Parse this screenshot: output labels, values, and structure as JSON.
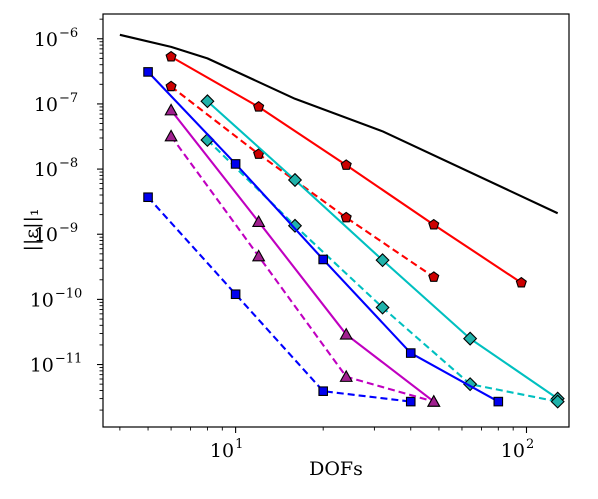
{
  "chart_data": {
    "type": "line",
    "title": "",
    "xlabel": "DOFs",
    "ylabel": "||ε||₁",
    "xscale": "log",
    "yscale": "log",
    "xlim": [
      3.5,
      140
    ],
    "ylim": [
      1.1e-12,
      2.4e-06
    ],
    "grid": false,
    "xticks": [
      {
        "value": 10,
        "base": "10",
        "exp": "1"
      },
      {
        "value": 100,
        "base": "10",
        "exp": "2"
      }
    ],
    "yticks": [
      {
        "value": 1e-11,
        "base": "10",
        "exp": "−11"
      },
      {
        "value": 1e-10,
        "base": "10",
        "exp": "−10"
      },
      {
        "value": 1e-09,
        "base": "10",
        "exp": "−9"
      },
      {
        "value": 1e-08,
        "base": "10",
        "exp": "−8"
      },
      {
        "value": 1e-07,
        "base": "10",
        "exp": "−7"
      },
      {
        "value": 1e-06,
        "base": "10",
        "exp": "−6"
      }
    ],
    "series": [
      {
        "color": "#000000",
        "dash": "solid",
        "marker": "none",
        "x": [
          4,
          6,
          8,
          16,
          32,
          128
        ],
        "y": [
          1.15e-06,
          7.5e-07,
          5e-07,
          1.2e-07,
          3.8e-08,
          2.1e-09
        ]
      },
      {
        "color": "#ff0000",
        "dash": "solid",
        "marker": "pentagon",
        "x": [
          6,
          12,
          24,
          48,
          96
        ],
        "y": [
          5.3e-07,
          9e-08,
          1.15e-08,
          1.4e-09,
          1.8e-10
        ]
      },
      {
        "color": "#ff0000",
        "dash": "dashed",
        "marker": "pentagon",
        "x": [
          6,
          12,
          24,
          48
        ],
        "y": [
          1.85e-07,
          1.7e-08,
          1.8e-09,
          2.2e-10
        ]
      },
      {
        "color": "#00c0c0",
        "dash": "solid",
        "marker": "diamond",
        "x": [
          8,
          16,
          32,
          64,
          128
        ],
        "y": [
          1.1e-07,
          6.8e-09,
          4e-10,
          2.5e-11,
          3e-12
        ]
      },
      {
        "color": "#00c0c0",
        "dash": "dashed",
        "marker": "diamond",
        "x": [
          8,
          16,
          32,
          64,
          128
        ],
        "y": [
          2.8e-08,
          1.35e-09,
          7.5e-11,
          5e-12,
          2.7e-12
        ]
      },
      {
        "color": "#0000ff",
        "dash": "solid",
        "marker": "square",
        "x": [
          5,
          10,
          20,
          40,
          80
        ],
        "y": [
          3.1e-07,
          1.2e-08,
          4.1e-10,
          1.5e-11,
          2.7e-12
        ]
      },
      {
        "color": "#0000ff",
        "dash": "dashed",
        "marker": "square",
        "x": [
          5,
          10,
          20,
          40
        ],
        "y": [
          3.7e-09,
          1.2e-10,
          3.9e-12,
          2.7e-12
        ]
      },
      {
        "color": "#c000c0",
        "dash": "solid",
        "marker": "triangle",
        "x": [
          6,
          12,
          24,
          48
        ],
        "y": [
          8e-08,
          1.55e-09,
          2.9e-11,
          2.7e-12
        ]
      },
      {
        "color": "#c000c0",
        "dash": "dashed",
        "marker": "triangle",
        "x": [
          6,
          12,
          24,
          48
        ],
        "y": [
          3.2e-08,
          4.6e-10,
          6.5e-12,
          2.7e-12
        ]
      }
    ],
    "marker_fills": {
      "pentagon": "#cc0000",
      "diamond": "#20b2aa",
      "square": "#0000ee",
      "triangle": "#a0208f"
    }
  }
}
